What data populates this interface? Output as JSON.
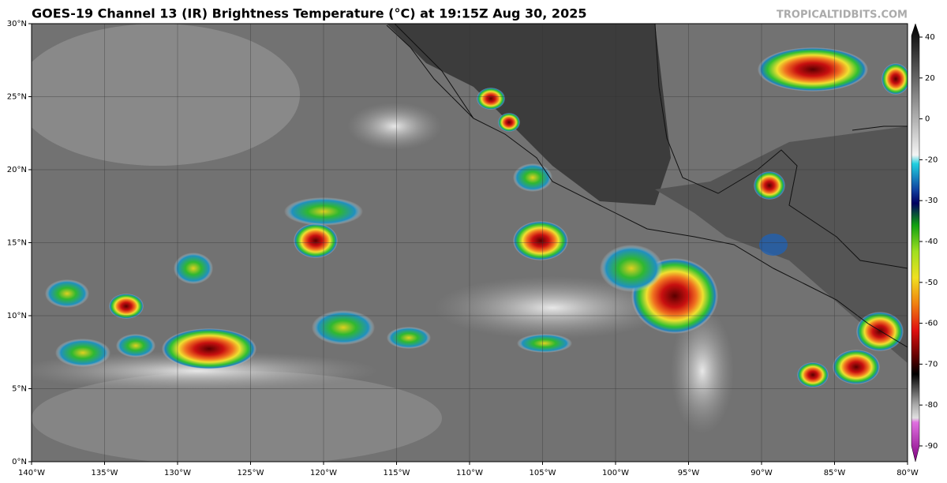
{
  "title": "GOES-19 Channel 13 (IR) Brightness Temperature (°C) at 19:15Z Aug 30, 2025",
  "credit": "TROPICALTIDBITS.COM",
  "map": {
    "lon_range": [
      -140,
      -80
    ],
    "lat_range": [
      0,
      30
    ],
    "lat_ticks": [
      {
        "value": 0,
        "label": "0°N"
      },
      {
        "value": 5,
        "label": "5°N"
      },
      {
        "value": 10,
        "label": "10°N"
      },
      {
        "value": 15,
        "label": "15°N"
      },
      {
        "value": 20,
        "label": "20°N"
      },
      {
        "value": 25,
        "label": "25°N"
      },
      {
        "value": 30,
        "label": "30°N"
      }
    ],
    "lon_ticks": [
      {
        "value": -140,
        "label": "140°W"
      },
      {
        "value": -135,
        "label": "135°W"
      },
      {
        "value": -130,
        "label": "130°W"
      },
      {
        "value": -125,
        "label": "125°W"
      },
      {
        "value": -120,
        "label": "120°W"
      },
      {
        "value": -115,
        "label": "115°W"
      },
      {
        "value": -110,
        "label": "110°W"
      },
      {
        "value": -105,
        "label": "105°W"
      },
      {
        "value": -100,
        "label": "100°W"
      },
      {
        "value": -95,
        "label": "95°W"
      },
      {
        "value": -90,
        "label": "90°W"
      },
      {
        "value": -85,
        "label": "85°W"
      },
      {
        "value": -80,
        "label": "80°W"
      }
    ]
  },
  "colorbar": {
    "ticks": [
      40,
      20,
      0,
      -20,
      -30,
      -40,
      -50,
      -60,
      -70,
      -80,
      -90
    ]
  }
}
